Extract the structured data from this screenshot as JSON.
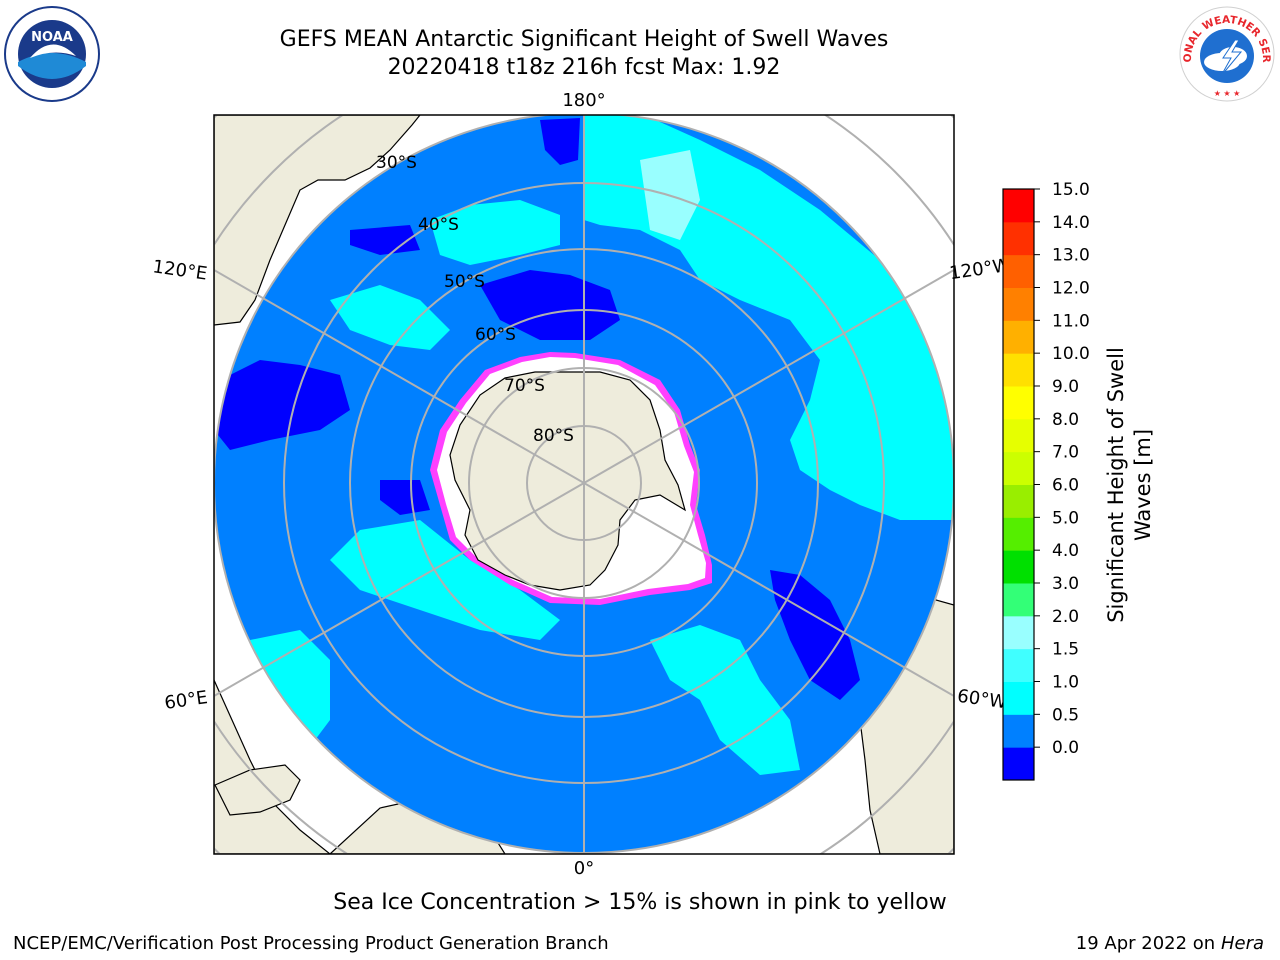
{
  "title": {
    "line1": "GEFS MEAN Antarctic Significant Height of Swell Waves",
    "line2": "20220418 t18z 216h fcst   Max: 1.92"
  },
  "map": {
    "projection": "south-polar-stereographic",
    "longitude_labels": [
      "180°",
      "120°E",
      "120°W",
      "60°E",
      "60°W",
      "0°"
    ],
    "latitude_labels": [
      "30°S",
      "40°S",
      "50°S",
      "60°S",
      "70°S",
      "80°S"
    ],
    "colors": {
      "ocean_0_0_5": "#0000ff",
      "ocean_0_5_1_0": "#0080ff",
      "ocean_1_0_1_5": "#00ffff",
      "ocean_1_5_2_0": "#40ffff",
      "ocean_2_0_3_0": "#99ffff",
      "land": "#eeecdc",
      "ice": "#ffffff",
      "ice_edge": "#ff40ff",
      "grid": "#b0b0b0"
    }
  },
  "colorbar": {
    "label_line1": "Significant Height of Swell",
    "label_line2": "Waves [m]",
    "ticks": [
      "15.0",
      "14.0",
      "13.0",
      "12.0",
      "11.0",
      "10.0",
      "9.0",
      "8.0",
      "7.0",
      "6.0",
      "5.0",
      "4.0",
      "3.0",
      "2.0",
      "1.5",
      "1.0",
      "0.5",
      "0.0"
    ],
    "bins": [
      {
        "color": "#0000ff"
      },
      {
        "color": "#0080ff"
      },
      {
        "color": "#00ffff"
      },
      {
        "color": "#40ffff"
      },
      {
        "color": "#99ffff"
      },
      {
        "color": "#33ff77"
      },
      {
        "color": "#00e000"
      },
      {
        "color": "#55ee00"
      },
      {
        "color": "#99ee00"
      },
      {
        "color": "#ccff00"
      },
      {
        "color": "#e6ff00"
      },
      {
        "color": "#ffff00"
      },
      {
        "color": "#ffe000"
      },
      {
        "color": "#ffb000"
      },
      {
        "color": "#ff8000"
      },
      {
        "color": "#ff6000"
      },
      {
        "color": "#ff3000"
      },
      {
        "color": "#ff0000"
      }
    ]
  },
  "note": "Sea Ice Concentration > 15% is shown in pink to yellow",
  "footer": {
    "left": "NCEP/EMC/Verification Post Processing Product Generation Branch",
    "right_prefix": "19 Apr 2022 on ",
    "right_host": "Hera"
  },
  "logos": {
    "left": {
      "icon": "noaa-logo",
      "text": "NOAA"
    },
    "right": {
      "icon": "nws-logo",
      "text": "NATIONAL WEATHER SERVICE"
    }
  }
}
